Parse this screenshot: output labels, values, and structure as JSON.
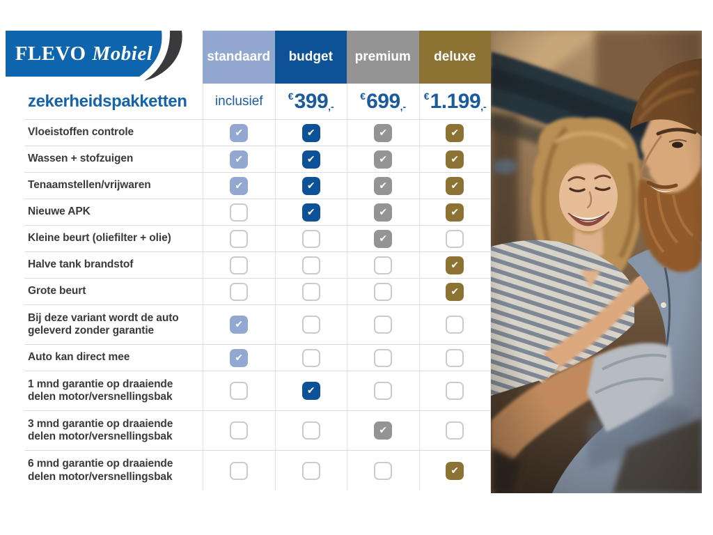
{
  "logo": {
    "brand": "FLEVO",
    "brand_suffix": "Mobiel",
    "bg_color": "#0e64ad",
    "swoosh_color": "#3a3a3c"
  },
  "title": {
    "text": "zekerheidspakketten",
    "color": "#1563a8"
  },
  "price_color": "#1b5a9d",
  "checkmark_glyph": "✔",
  "packages": [
    {
      "id": "standaard",
      "label": "standaard",
      "price_text": "inclusief",
      "color": "#93a8d1"
    },
    {
      "id": "budget",
      "label": "budget",
      "currency": "€",
      "amount": "399",
      "suffix": ",-",
      "color": "#0d5296"
    },
    {
      "id": "premium",
      "label": "premium",
      "currency": "€",
      "amount": "699",
      "suffix": ",-",
      "color": "#949494"
    },
    {
      "id": "deluxe",
      "label": "deluxe",
      "currency": "€",
      "amount": "1.199",
      "suffix": ",-",
      "color": "#8c7334"
    }
  ],
  "features": [
    {
      "label": "Vloeistoffen controle",
      "included": [
        true,
        true,
        true,
        true
      ],
      "tall": false
    },
    {
      "label": "Wassen + stofzuigen",
      "included": [
        true,
        true,
        true,
        true
      ],
      "tall": false
    },
    {
      "label": "Tenaamstellen/vrijwaren",
      "included": [
        true,
        true,
        true,
        true
      ],
      "tall": false
    },
    {
      "label": "Nieuwe APK",
      "included": [
        false,
        true,
        true,
        true
      ],
      "tall": false
    },
    {
      "label": "Kleine beurt (oliefilter + olie)",
      "included": [
        false,
        false,
        true,
        false
      ],
      "tall": false
    },
    {
      "label": "Halve tank brandstof",
      "included": [
        false,
        false,
        false,
        true
      ],
      "tall": false
    },
    {
      "label": "Grote beurt",
      "included": [
        false,
        false,
        false,
        true
      ],
      "tall": false
    },
    {
      "label": "Bij deze variant wordt de auto geleverd zonder garantie",
      "included": [
        true,
        false,
        false,
        false
      ],
      "tall": true
    },
    {
      "label": "Auto kan direct mee",
      "included": [
        true,
        false,
        false,
        false
      ],
      "tall": false
    },
    {
      "label": "1 mnd garantie op draaiende delen motor/versnellingsbak",
      "included": [
        false,
        true,
        false,
        false
      ],
      "tall": true
    },
    {
      "label": "3 mnd garantie op draaiende delen motor/versnellingsbak",
      "included": [
        false,
        false,
        true,
        false
      ],
      "tall": true
    },
    {
      "label": "6 mnd garantie op draaiende delen motor/versnellingsbak",
      "included": [
        false,
        false,
        false,
        true
      ],
      "tall": true
    }
  ],
  "photo": {
    "description": "Smiling woman with wavy blonde hair in striped top looking at bearded man in denim shirt inside a car"
  }
}
